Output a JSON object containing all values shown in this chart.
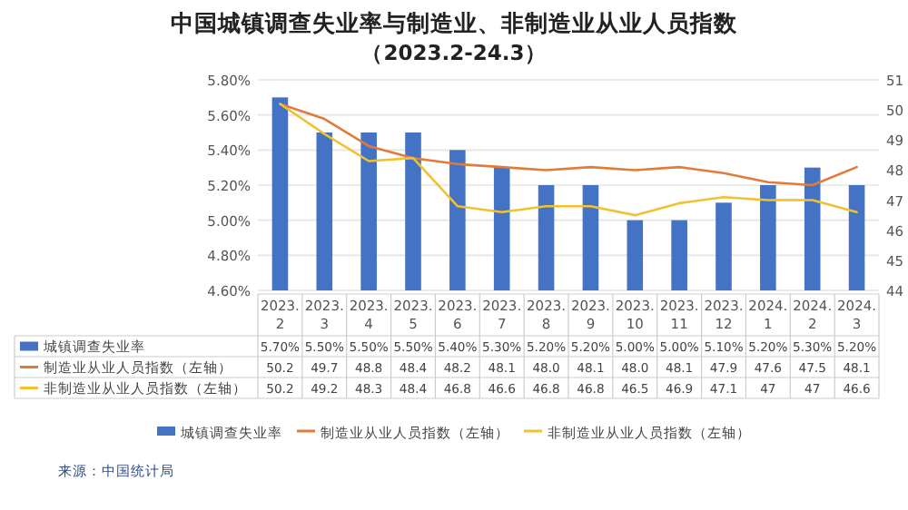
{
  "chart_data": {
    "type": "bar",
    "title": "中国城镇调查失业率与制造业、非制造业从业人员指数",
    "subtitle": "（2023.2-24.3）",
    "categories": [
      "2023.2",
      "2023.3",
      "2023.4",
      "2023.5",
      "2023.6",
      "2023.7",
      "2023.8",
      "2023.9",
      "2023.10",
      "2023.11",
      "2023.12",
      "2024.1",
      "2024.2",
      "2024.3"
    ],
    "series": [
      {
        "name": "城镇调查失业率",
        "color": "#4472c4",
        "values": [
          5.7,
          5.5,
          5.5,
          5.5,
          5.4,
          5.3,
          5.2,
          5.2,
          5.0,
          5.0,
          5.1,
          5.2,
          5.3,
          5.2
        ],
        "value_labels": [
          "5.70%",
          "5.50%",
          "5.50%",
          "5.50%",
          "5.40%",
          "5.30%",
          "5.20%",
          "5.20%",
          "5.00%",
          "5.00%",
          "5.10%",
          "5.20%",
          "5.30%",
          "5.20%"
        ]
      },
      {
        "name": "制造业从业人员指数（左轴）",
        "type": "line",
        "axis": "y2",
        "color": "#e07b39",
        "values": [
          50.2,
          49.7,
          48.8,
          48.4,
          48.2,
          48.1,
          48.0,
          48.1,
          48.0,
          48.1,
          47.9,
          47.6,
          47.5,
          48.1
        ],
        "value_labels": [
          "50.2",
          "49.7",
          "48.8",
          "48.4",
          "48.2",
          "48.1",
          "48.0",
          "48.1",
          "48.0",
          "48.1",
          "47.9",
          "47.6",
          "47.5",
          "48.1"
        ]
      },
      {
        "name": "非制造业从业人员指数（左轴）",
        "type": "line",
        "axis": "y2",
        "color": "#f2c12e",
        "values": [
          50.2,
          49.2,
          48.3,
          48.4,
          46.8,
          46.6,
          46.8,
          46.8,
          46.5,
          46.9,
          47.1,
          47,
          47,
          46.6
        ],
        "value_labels": [
          "50.2",
          "49.2",
          "48.3",
          "48.4",
          "46.8",
          "46.6",
          "46.8",
          "46.8",
          "46.5",
          "46.9",
          "47.1",
          "47",
          "47",
          "46.6"
        ]
      }
    ],
    "ylim": [
      4.6,
      5.8
    ],
    "yticks": [
      {
        "value": 4.6,
        "label": "4.60%"
      },
      {
        "value": 4.8,
        "label": "4.80%"
      },
      {
        "value": 5.0,
        "label": "5.00%"
      },
      {
        "value": 5.2,
        "label": "5.20%"
      },
      {
        "value": 5.4,
        "label": "5.40%"
      },
      {
        "value": 5.6,
        "label": "5.60%"
      },
      {
        "value": 5.8,
        "label": "5.80%"
      }
    ],
    "y2lim": [
      44,
      51
    ],
    "y2ticks": [
      44,
      45,
      46,
      47,
      48,
      49,
      50,
      51
    ],
    "grid": "y",
    "legend": "bottom",
    "annotations": [
      "来源：中国统计局"
    ]
  }
}
